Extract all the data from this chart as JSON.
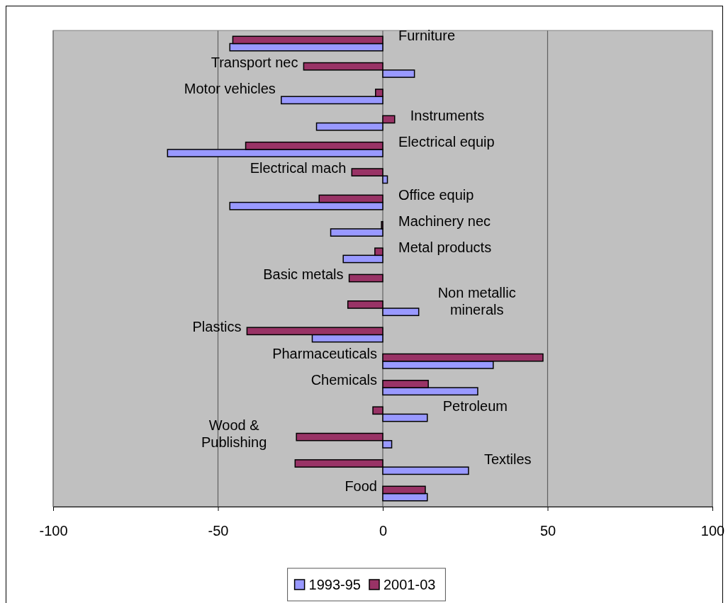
{
  "chart_data": {
    "type": "bar",
    "orientation": "horizontal",
    "categories": [
      "Furniture",
      "Transport nec",
      "Motor vehicles",
      "Instruments",
      "Electrical equip",
      "Electrical mach",
      "Office equip",
      "Machinery nec",
      "Metal products",
      "Basic metals",
      "Non metallic minerals",
      "Plastics",
      "Pharmaceuticals",
      "Chemicals",
      "Petroleum",
      "Wood & Publishing",
      "Textiles",
      "Food"
    ],
    "series": [
      {
        "name": "1993-95",
        "color": "#9999ff",
        "values": [
          -46.4,
          9.6,
          -30.8,
          -20.1,
          -65.3,
          1.4,
          -46.4,
          -15.8,
          -12.0,
          0,
          10.9,
          -21.4,
          33.5,
          28.8,
          13.5,
          2.7,
          26.0,
          13.5
        ]
      },
      {
        "name": "2001-03",
        "color": "#993366",
        "values": [
          -45.5,
          -24.0,
          -2.2,
          3.6,
          -41.6,
          -9.4,
          -19.3,
          -0.4,
          -2.4,
          -10.2,
          -10.6,
          -41.2,
          48.6,
          13.8,
          -3.0,
          -26.2,
          -26.6,
          12.9
        ]
      }
    ],
    "xlim": [
      -100,
      100
    ],
    "xticks": [
      -100,
      -50,
      0,
      50,
      100
    ],
    "grid": "x",
    "legend": "bottom"
  }
}
